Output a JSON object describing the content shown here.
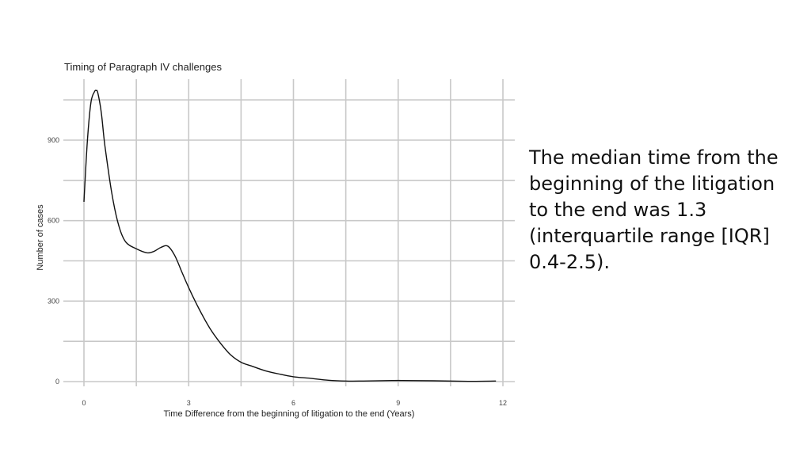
{
  "chart_data": {
    "type": "line",
    "title": "Timing of Paragraph IV challenges",
    "xlabel": "Time Difference from the beginning of litigation to the end (Years)",
    "ylabel": "Number of cases",
    "xlim": [
      0,
      12.6
    ],
    "ylim": [
      -20,
      1125
    ],
    "x_ticks": [
      0,
      3,
      6,
      9,
      12
    ],
    "y_ticks": [
      0,
      300,
      600,
      900
    ],
    "grid": true,
    "legend": "none",
    "line_color": "#111111",
    "series": [
      {
        "x": [
          0,
          0.1,
          0.2,
          0.3,
          0.35,
          0.4,
          0.5,
          0.6,
          0.8,
          1.0,
          1.2,
          1.5,
          1.8,
          2.0,
          2.2,
          2.4,
          2.6,
          2.8,
          3.0,
          3.3,
          3.6,
          3.9,
          4.2,
          4.5,
          4.8,
          5.2,
          5.6,
          6.0,
          6.5,
          7.0,
          7.5,
          8.0,
          9.0,
          10.0,
          11.0,
          11.8
        ],
        "y": [
          670,
          900,
          1040,
          1080,
          1085,
          1075,
          1000,
          880,
          700,
          580,
          520,
          495,
          480,
          485,
          500,
          505,
          470,
          410,
          350,
          270,
          200,
          145,
          100,
          72,
          58,
          40,
          28,
          18,
          12,
          5,
          2,
          2,
          4,
          3,
          1,
          2
        ]
      }
    ]
  },
  "side_note": {
    "text": "The median time from the beginning of the litigation to the end was 1.3 (interquartile range [IQR] 0.4-2.5)."
  }
}
